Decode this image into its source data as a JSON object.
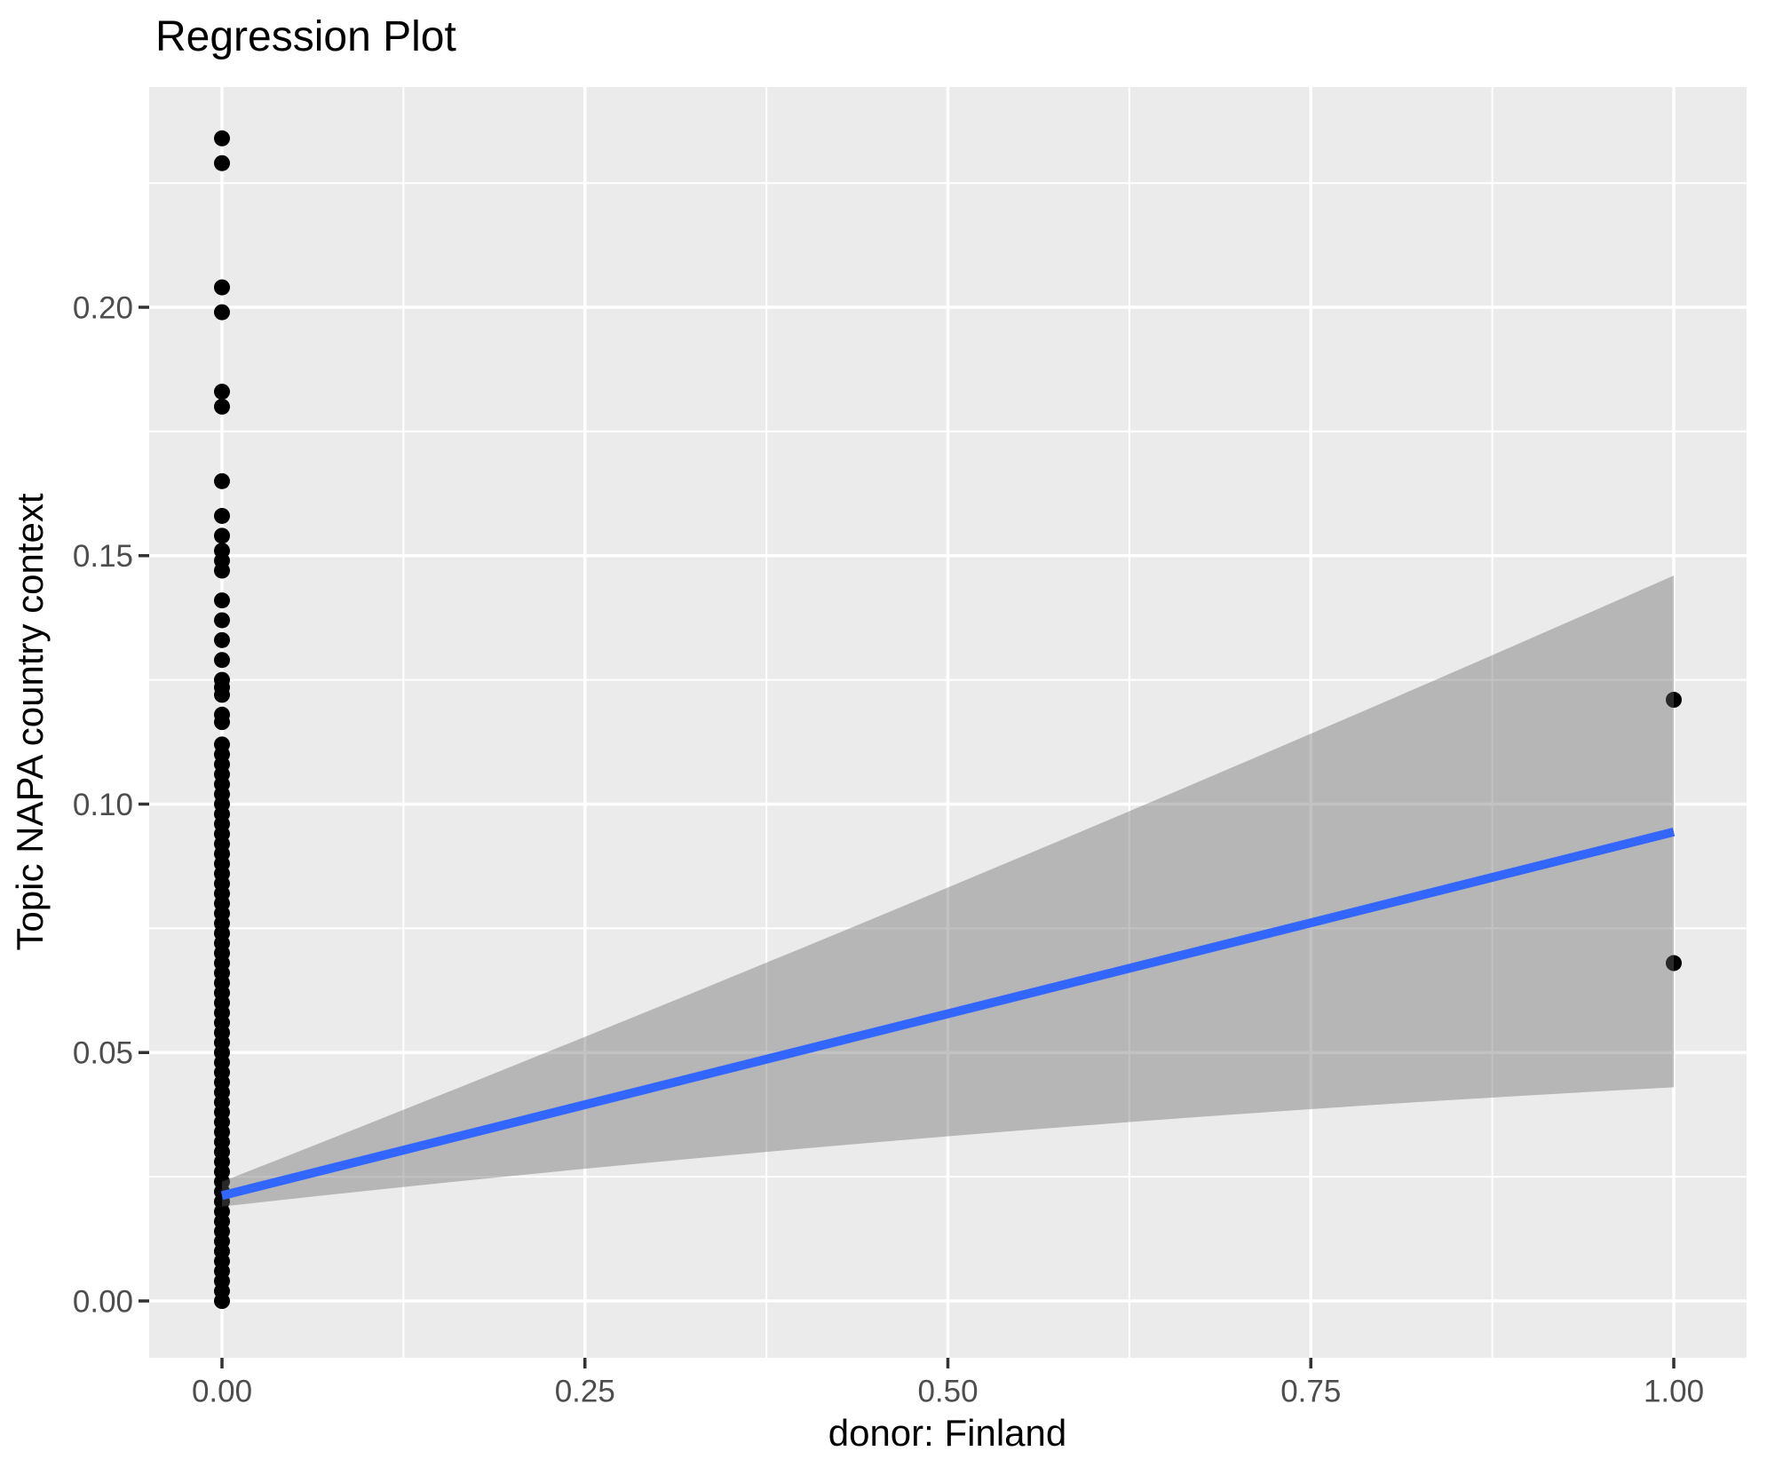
{
  "title": "Regression Plot",
  "colors": {
    "panel_background": "#EBEBEB",
    "gridline": "#FFFFFF",
    "point": "#000000",
    "regression_line": "#3366FF",
    "confidence_band": "rgba(102,102,102,0.40)",
    "tick_mark": "#333333",
    "tick_label": "#4D4D4D",
    "title_text": "#000000"
  },
  "axes": {
    "x": {
      "label": "donor: Finland",
      "tick_labels": [
        "0.00",
        "0.25",
        "0.50",
        "0.75",
        "1.00"
      ],
      "tick_values": [
        0,
        0.25,
        0.5,
        0.75,
        1
      ],
      "minor_tick_values": [
        0.125,
        0.375,
        0.625,
        0.875
      ]
    },
    "y": {
      "label": "Topic NAPA country context",
      "tick_labels": [
        "0.00",
        "0.05",
        "0.10",
        "0.15",
        "0.20"
      ],
      "tick_values": [
        0,
        0.05,
        0.1,
        0.15,
        0.2
      ],
      "minor_tick_values": [
        0.025,
        0.075,
        0.125,
        0.175,
        0.225
      ]
    }
  },
  "chart_data": {
    "type": "scatter",
    "title": "Regression Plot",
    "xlabel": "donor: Finland",
    "ylabel": "Topic NAPA country context",
    "xlim": [
      -0.05,
      1.05
    ],
    "ylim": [
      -0.0113,
      0.2459
    ],
    "grid": true,
    "legend": false,
    "series": [
      {
        "name": "observations at donor=0",
        "x": 0,
        "y": [
          0.234,
          0.229,
          0.204,
          0.199,
          0.183,
          0.18,
          0.165,
          0.158,
          0.154,
          0.151,
          0.149,
          0.147,
          0.141,
          0.137,
          0.133,
          0.129,
          0.125,
          0.1235,
          0.122,
          0.118,
          0.1165,
          0.112,
          0.11,
          0.108,
          0.106,
          0.104,
          0.102,
          0.1,
          0.098,
          0.096,
          0.094,
          0.092,
          0.09,
          0.088,
          0.086,
          0.084,
          0.082,
          0.08,
          0.078,
          0.076,
          0.074,
          0.072,
          0.07,
          0.068,
          0.066,
          0.064,
          0.062,
          0.06,
          0.058,
          0.056,
          0.054,
          0.052,
          0.05,
          0.048,
          0.046,
          0.044,
          0.042,
          0.04,
          0.038,
          0.036,
          0.034,
          0.032,
          0.03,
          0.028,
          0.026,
          0.024,
          0.022,
          0.02,
          0.018,
          0.016,
          0.014,
          0.012,
          0.01,
          0.008,
          0.006,
          0.004,
          0.002,
          0.0
        ]
      },
      {
        "name": "observations at donor=1",
        "x": 1,
        "y": [
          0.121,
          0.068
        ]
      },
      {
        "name": "regression line",
        "points": [
          [
            0,
            0.0212
          ],
          [
            1,
            0.0944
          ]
        ]
      },
      {
        "name": "confidence band",
        "upper": [
          [
            0,
            0.024
          ],
          [
            1,
            0.146
          ]
        ],
        "lower": [
          [
            0,
            0.019
          ],
          [
            1,
            0.043
          ]
        ]
      }
    ]
  }
}
